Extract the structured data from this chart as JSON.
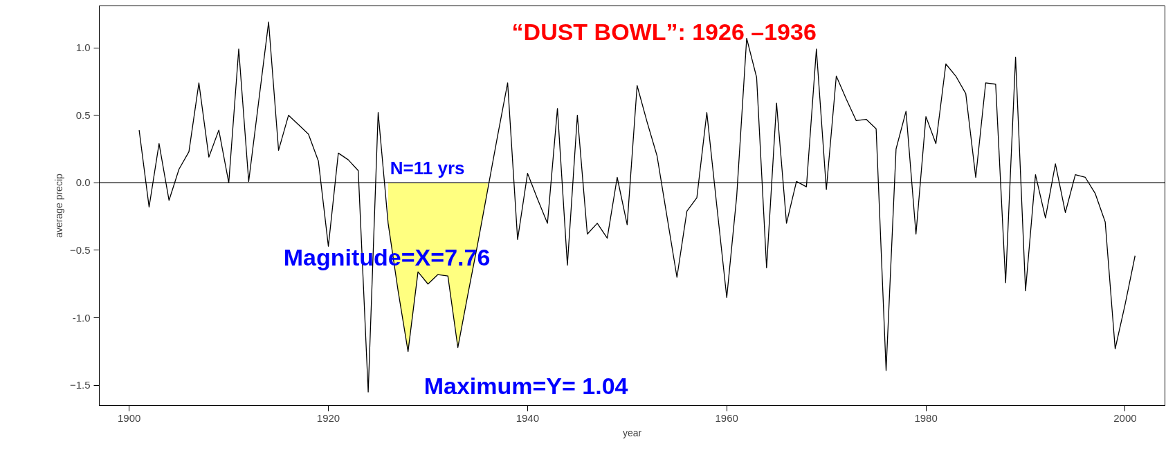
{
  "chart_data": {
    "type": "line",
    "title": "“DUST BOWL”: 1926 –1936",
    "xlabel": "year",
    "ylabel": "average precip",
    "x": [
      1901,
      1902,
      1903,
      1904,
      1905,
      1906,
      1907,
      1908,
      1909,
      1910,
      1911,
      1912,
      1913,
      1914,
      1915,
      1916,
      1917,
      1918,
      1919,
      1920,
      1921,
      1922,
      1923,
      1924,
      1925,
      1926,
      1927,
      1928,
      1929,
      1930,
      1931,
      1932,
      1933,
      1934,
      1935,
      1936,
      1937,
      1938,
      1939,
      1940,
      1941,
      1942,
      1943,
      1944,
      1945,
      1946,
      1947,
      1948,
      1949,
      1950,
      1951,
      1952,
      1953,
      1954,
      1955,
      1956,
      1957,
      1958,
      1959,
      1960,
      1961,
      1962,
      1963,
      1964,
      1965,
      1966,
      1967,
      1968,
      1969,
      1970,
      1971,
      1972,
      1973,
      1974,
      1975,
      1976,
      1977,
      1978,
      1979,
      1980,
      1981,
      1982,
      1983,
      1984,
      1985,
      1986,
      1987,
      1988,
      1989,
      1990,
      1991,
      1992,
      1993,
      1994,
      1995,
      1996,
      1997,
      1998,
      1999,
      2000,
      2001
    ],
    "series": [
      {
        "type": "area",
        "color": "#ffff80",
        "x": [
          1926,
          1927,
          1928,
          1929,
          1930,
          1931,
          1932,
          1933,
          1934,
          1935,
          1936
        ],
        "values": [
          -0.3,
          -0.8,
          -1.25,
          -0.66,
          -0.75,
          -0.68,
          -0.69,
          -1.22,
          -0.83,
          -0.45,
          -0.05
        ]
      },
      {
        "color": "#000000",
        "values": [
          0.39,
          -0.18,
          0.29,
          -0.13,
          0.1,
          0.23,
          0.74,
          0.19,
          0.39,
          0.0,
          0.99,
          0.01,
          0.6,
          1.19,
          0.24,
          0.5,
          0.43,
          0.36,
          0.16,
          -0.47,
          0.22,
          0.17,
          0.09,
          -1.55,
          0.52,
          -0.3,
          -0.8,
          -1.25,
          -0.66,
          -0.75,
          -0.68,
          -0.69,
          -1.22,
          -0.83,
          -0.45,
          -0.05,
          0.35,
          0.74,
          -0.42,
          0.07,
          -0.12,
          -0.3,
          0.55,
          -0.61,
          0.5,
          -0.38,
          -0.3,
          -0.41,
          0.04,
          -0.31,
          0.72,
          0.45,
          0.2,
          -0.25,
          -0.7,
          -0.21,
          -0.11,
          0.52,
          -0.17,
          -0.85,
          -0.1,
          1.07,
          0.78,
          -0.63,
          0.59,
          -0.3,
          0.01,
          -0.03,
          0.99,
          -0.05,
          0.79,
          0.62,
          0.46,
          0.47,
          0.4,
          -1.39,
          0.25,
          0.53,
          -0.38,
          0.49,
          0.29,
          0.88,
          0.79,
          0.66,
          0.04,
          0.74,
          0.73,
          -0.74,
          0.93,
          -0.8,
          0.06,
          -0.26,
          0.14,
          -0.22,
          0.06,
          0.04,
          -0.08,
          -0.29,
          -1.23,
          -0.9,
          -0.54
        ]
      }
    ],
    "xlim": [
      1897,
      2004
    ],
    "ylim": [
      -1.65,
      1.31
    ],
    "xticks": [
      1900,
      1920,
      1940,
      1960,
      1980,
      2000
    ],
    "yticks": [
      -1.5,
      {
        "value": -1.0,
        "label": "-1.0"
      },
      -0.5,
      {
        "value": 0.0,
        "label": "0.0"
      },
      0.5,
      {
        "value": 1.0,
        "label": "1.0"
      }
    ],
    "ref_lines": [
      {
        "axis": "y",
        "value": 0,
        "color": "#000000"
      }
    ],
    "annotations": [
      "N=11 yrs",
      "Magnitude=X=7.76",
      "Maximum=Y=  1.04"
    ],
    "grid": false,
    "legend": false,
    "marker": "none",
    "line_style": "solid"
  }
}
